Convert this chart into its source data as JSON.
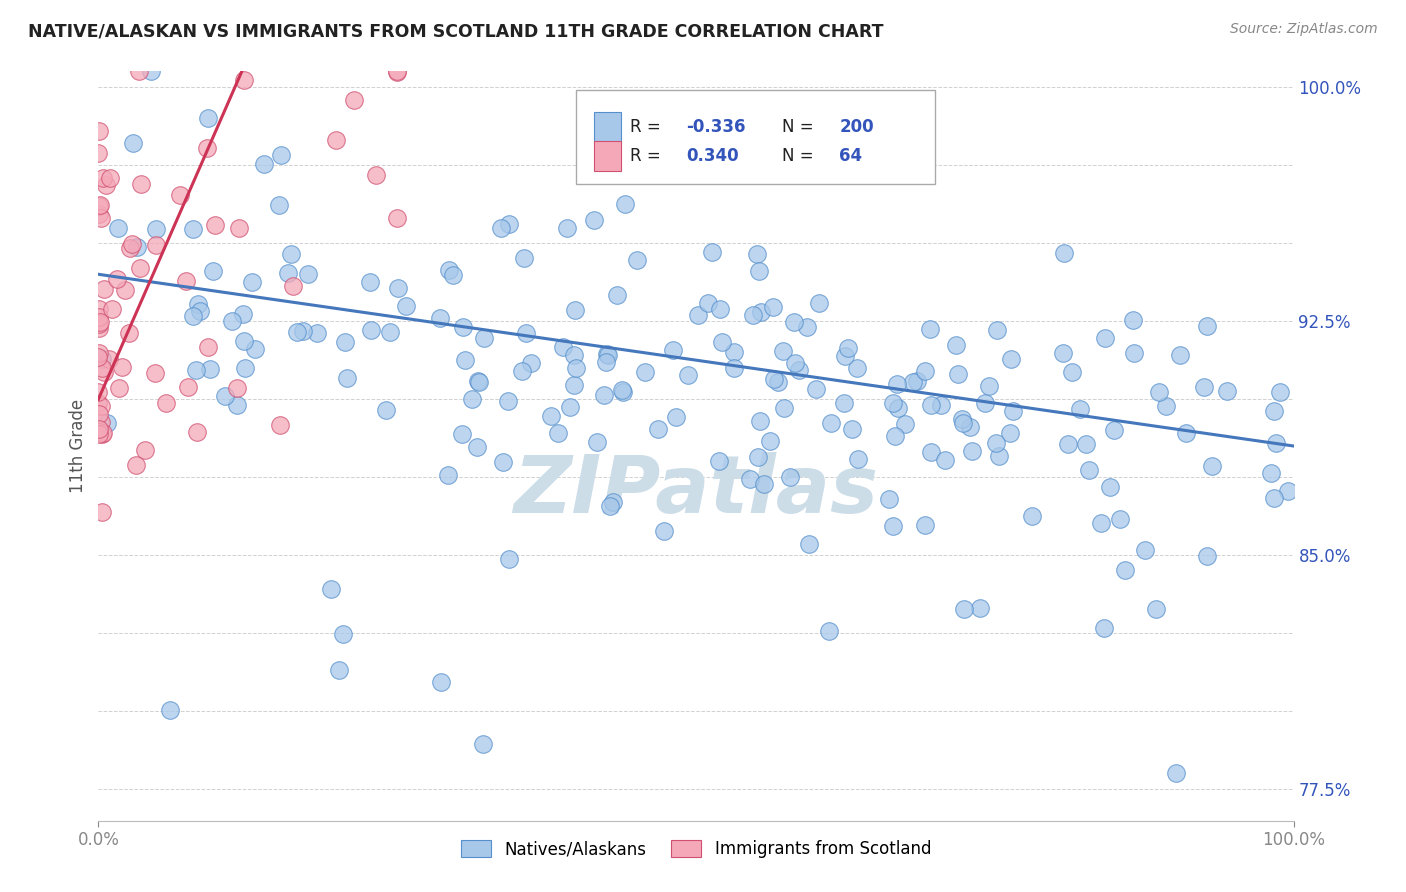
{
  "title": "NATIVE/ALASKAN VS IMMIGRANTS FROM SCOTLAND 11TH GRADE CORRELATION CHART",
  "source_text": "Source: ZipAtlas.com",
  "ylabel": "11th Grade",
  "xlim": [
    0.0,
    1.0
  ],
  "ylim": [
    0.765,
    1.005
  ],
  "legend_r1": "-0.336",
  "legend_n1": "200",
  "legend_r2": "0.340",
  "legend_n2": "64",
  "blue_fill": "#a8c8ea",
  "blue_edge": "#5590cc",
  "pink_fill": "#f4a8b8",
  "pink_edge": "#d05070",
  "blue_line": "#4477bb",
  "pink_line": "#cc3355",
  "text_blue": "#3355bb",
  "watermark_color": "#ccdde8",
  "background_color": "#ffffff",
  "grid_color": "#cccccc",
  "ytick_positions": [
    0.775,
    0.8,
    0.825,
    0.85,
    0.875,
    0.9,
    0.925,
    0.95,
    0.975,
    1.0
  ],
  "ytick_labels": [
    "77.5%",
    "",
    "",
    "85.0%",
    "",
    "",
    "92.5%",
    "",
    "",
    "100.0%"
  ],
  "blue_trend_x0": 0.0,
  "blue_trend_y0": 0.94,
  "blue_trend_x1": 1.0,
  "blue_trend_y1": 0.885,
  "pink_trend_x0": 0.0,
  "pink_trend_y0": 0.9,
  "pink_trend_x1": 0.12,
  "pink_trend_y1": 1.005
}
